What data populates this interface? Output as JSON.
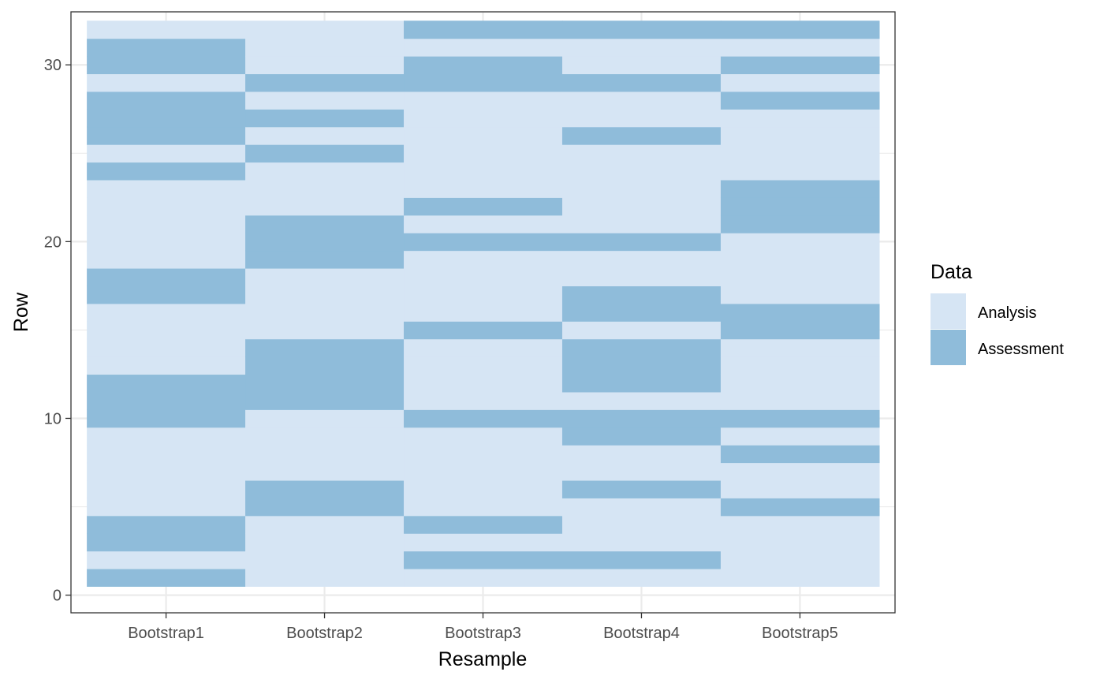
{
  "chart_data": {
    "type": "heatmap",
    "title": "",
    "xlabel": "Resample",
    "ylabel": "Row",
    "categories": [
      "Bootstrap1",
      "Bootstrap2",
      "Bootstrap3",
      "Bootstrap4",
      "Bootstrap5"
    ],
    "rows": [
      1,
      32
    ],
    "ylim": [
      -1,
      33
    ],
    "yticks": [
      0,
      10,
      20,
      30
    ],
    "grid": true,
    "legend": {
      "title": "Data",
      "placement": "right",
      "items": [
        {
          "label": "Analysis",
          "color": "#d6e5f4"
        },
        {
          "label": "Assessment",
          "color": "#8fbcda"
        }
      ]
    },
    "series": [
      {
        "resample": "Bootstrap1",
        "assessment_rows": [
          1,
          3,
          4,
          10,
          11,
          12,
          17,
          18,
          24,
          26,
          27,
          28,
          30,
          31
        ]
      },
      {
        "resample": "Bootstrap2",
        "assessment_rows": [
          5,
          6,
          11,
          12,
          13,
          14,
          19,
          20,
          21,
          25,
          27,
          29
        ]
      },
      {
        "resample": "Bootstrap3",
        "assessment_rows": [
          2,
          4,
          10,
          15,
          20,
          22,
          29,
          30,
          32
        ]
      },
      {
        "resample": "Bootstrap4",
        "assessment_rows": [
          2,
          6,
          9,
          10,
          12,
          13,
          14,
          16,
          17,
          20,
          26,
          29,
          32
        ]
      },
      {
        "resample": "Bootstrap5",
        "assessment_rows": [
          5,
          8,
          10,
          15,
          16,
          21,
          22,
          23,
          28,
          30,
          32
        ]
      }
    ]
  }
}
